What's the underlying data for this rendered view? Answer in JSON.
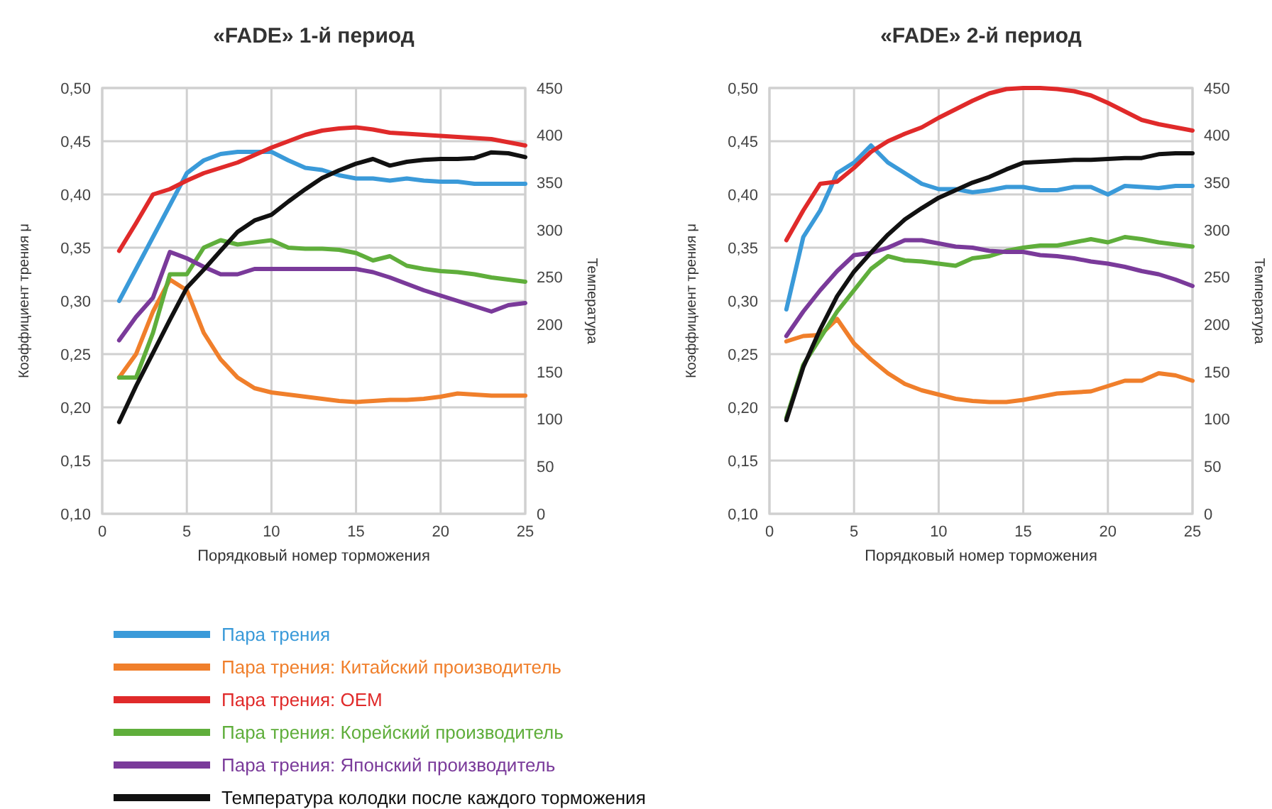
{
  "chart_data": [
    {
      "type": "line",
      "title": "«FADE» 1-й период",
      "xlabel": "Порядковый номер торможения",
      "ylabel": "Коэффициент трения μ",
      "y2label": "Температура",
      "x": [
        1,
        2,
        3,
        4,
        5,
        6,
        7,
        8,
        9,
        10,
        11,
        12,
        13,
        14,
        15,
        16,
        17,
        18,
        19,
        20,
        21,
        22,
        23,
        24,
        25
      ],
      "xlim": [
        0,
        25
      ],
      "xticks": [
        0,
        5,
        10,
        15,
        20,
        25
      ],
      "ylim": [
        0.1,
        0.5
      ],
      "yticks": [
        {
          "value": 0.1,
          "label": "0,10"
        },
        {
          "value": 0.15,
          "label": "0,15"
        },
        {
          "value": 0.2,
          "label": "0,20"
        },
        {
          "value": 0.25,
          "label": "0,25"
        },
        {
          "value": 0.3,
          "label": "0,30"
        },
        {
          "value": 0.35,
          "label": "0,35"
        },
        {
          "value": 0.4,
          "label": "0,40"
        },
        {
          "value": 0.45,
          "label": "0,45"
        },
        {
          "value": 0.5,
          "label": "0,50"
        }
      ],
      "y2lim": [
        0,
        450
      ],
      "y2ticks": [
        0,
        50,
        100,
        150,
        200,
        250,
        300,
        350,
        400,
        450
      ],
      "grid": true,
      "legend": "bottom",
      "marker": "none",
      "line_style": "solid",
      "series": [
        {
          "name": "Пара трения",
          "color": "#3a9ad9",
          "values": [
            0.3,
            0.33,
            0.36,
            0.39,
            0.42,
            0.432,
            0.438,
            0.44,
            0.44,
            0.44,
            0.432,
            0.425,
            0.423,
            0.418,
            0.415,
            0.415,
            0.413,
            0.415,
            0.413,
            0.412,
            0.412,
            0.41,
            0.41,
            0.41,
            0.41
          ]
        },
        {
          "name": "Пара трения: Китайский производитель",
          "color": "#f07f2b",
          "values": [
            0.228,
            0.25,
            0.29,
            0.32,
            0.31,
            0.27,
            0.245,
            0.228,
            0.218,
            0.214,
            0.212,
            0.21,
            0.208,
            0.206,
            0.205,
            0.206,
            0.207,
            0.207,
            0.208,
            0.21,
            0.213,
            0.212,
            0.211,
            0.211,
            0.211
          ]
        },
        {
          "name": "Пара трения: OEM",
          "color": "#e02a2a",
          "values": [
            0.347,
            0.373,
            0.4,
            0.405,
            0.413,
            0.42,
            0.425,
            0.43,
            0.437,
            0.444,
            0.45,
            0.456,
            0.46,
            0.462,
            0.463,
            0.461,
            0.458,
            0.457,
            0.456,
            0.455,
            0.454,
            0.453,
            0.452,
            0.449,
            0.446
          ]
        },
        {
          "name": "Пара трения: Корейский производитель",
          "color": "#5fae3b",
          "values": [
            0.228,
            0.228,
            0.27,
            0.325,
            0.325,
            0.35,
            0.357,
            0.353,
            0.355,
            0.357,
            0.35,
            0.349,
            0.349,
            0.348,
            0.345,
            0.338,
            0.342,
            0.333,
            0.33,
            0.328,
            0.327,
            0.325,
            0.322,
            0.32,
            0.318
          ]
        },
        {
          "name": "Пара трения: Японский производитель",
          "color": "#7a3a9a",
          "values": [
            0.263,
            0.285,
            0.303,
            0.346,
            0.34,
            0.332,
            0.325,
            0.325,
            0.33,
            0.33,
            0.33,
            0.33,
            0.33,
            0.33,
            0.33,
            0.327,
            0.322,
            0.316,
            0.31,
            0.305,
            0.3,
            0.295,
            0.29,
            0.296,
            0.298
          ]
        },
        {
          "name": "Температура колодки после каждого торможения",
          "color": "#111111",
          "axis": "y2",
          "values": [
            97,
            135,
            170,
            205,
            239,
            258,
            278,
            298,
            310,
            316,
            330,
            343,
            355,
            363,
            370,
            375,
            368,
            372,
            374,
            375,
            375,
            376,
            382,
            381,
            377
          ]
        }
      ]
    },
    {
      "type": "line",
      "title": "«FADE» 2-й период",
      "xlabel": "Порядковый номер торможения",
      "ylabel": "Коэффициент трения μ",
      "y2label": "Температура",
      "x": [
        1,
        2,
        3,
        4,
        5,
        6,
        7,
        8,
        9,
        10,
        11,
        12,
        13,
        14,
        15,
        16,
        17,
        18,
        19,
        20,
        21,
        22,
        23,
        24,
        25
      ],
      "xlim": [
        0,
        25
      ],
      "xticks": [
        0,
        5,
        10,
        15,
        20,
        25
      ],
      "ylim": [
        0.1,
        0.5
      ],
      "yticks": [
        {
          "value": 0.1,
          "label": "0,10"
        },
        {
          "value": 0.15,
          "label": "0,15"
        },
        {
          "value": 0.2,
          "label": "0,20"
        },
        {
          "value": 0.25,
          "label": "0,25"
        },
        {
          "value": 0.3,
          "label": "0,30"
        },
        {
          "value": 0.35,
          "label": "0,35"
        },
        {
          "value": 0.4,
          "label": "0,40"
        },
        {
          "value": 0.45,
          "label": "0,45"
        },
        {
          "value": 0.5,
          "label": "0,50"
        }
      ],
      "y2lim": [
        0,
        450
      ],
      "y2ticks": [
        0,
        50,
        100,
        150,
        200,
        250,
        300,
        350,
        400,
        450
      ],
      "grid": true,
      "marker": "none",
      "line_style": "solid",
      "series": [
        {
          "color": "#3a9ad9",
          "values": [
            0.292,
            0.36,
            0.385,
            0.42,
            0.43,
            0.446,
            0.43,
            0.42,
            0.41,
            0.405,
            0.405,
            0.402,
            0.404,
            0.407,
            0.407,
            0.404,
            0.404,
            0.407,
            0.407,
            0.4,
            0.408,
            0.407,
            0.406,
            0.408,
            0.408
          ]
        },
        {
          "color": "#f07f2b",
          "values": [
            0.262,
            0.267,
            0.268,
            0.283,
            0.26,
            0.245,
            0.232,
            0.222,
            0.216,
            0.212,
            0.208,
            0.206,
            0.205,
            0.205,
            0.207,
            0.21,
            0.213,
            0.214,
            0.215,
            0.22,
            0.225,
            0.225,
            0.232,
            0.23,
            0.225
          ]
        },
        {
          "color": "#e02a2a",
          "values": [
            0.357,
            0.385,
            0.41,
            0.412,
            0.425,
            0.44,
            0.45,
            0.457,
            0.463,
            0.472,
            0.48,
            0.488,
            0.495,
            0.499,
            0.5,
            0.5,
            0.499,
            0.497,
            0.493,
            0.486,
            0.478,
            0.47,
            0.466,
            0.463,
            0.46
          ]
        },
        {
          "color": "#5fae3b",
          "values": [
            0.19,
            0.24,
            0.265,
            0.29,
            0.31,
            0.33,
            0.342,
            0.338,
            0.337,
            0.335,
            0.333,
            0.34,
            0.342,
            0.347,
            0.35,
            0.352,
            0.352,
            0.355,
            0.358,
            0.355,
            0.36,
            0.358,
            0.355,
            0.353,
            0.351
          ]
        },
        {
          "color": "#7a3a9a",
          "values": [
            0.267,
            0.29,
            0.31,
            0.328,
            0.343,
            0.345,
            0.35,
            0.357,
            0.357,
            0.354,
            0.351,
            0.35,
            0.347,
            0.346,
            0.346,
            0.343,
            0.342,
            0.34,
            0.337,
            0.335,
            0.332,
            0.328,
            0.325,
            0.32,
            0.314
          ]
        },
        {
          "color": "#111111",
          "axis": "y2",
          "values": [
            99,
            155,
            195,
            230,
            256,
            276,
            295,
            311,
            323,
            334,
            342,
            350,
            356,
            364,
            371,
            372,
            373,
            374,
            374,
            375,
            376,
            376,
            380,
            381,
            381
          ]
        }
      ]
    }
  ]
}
